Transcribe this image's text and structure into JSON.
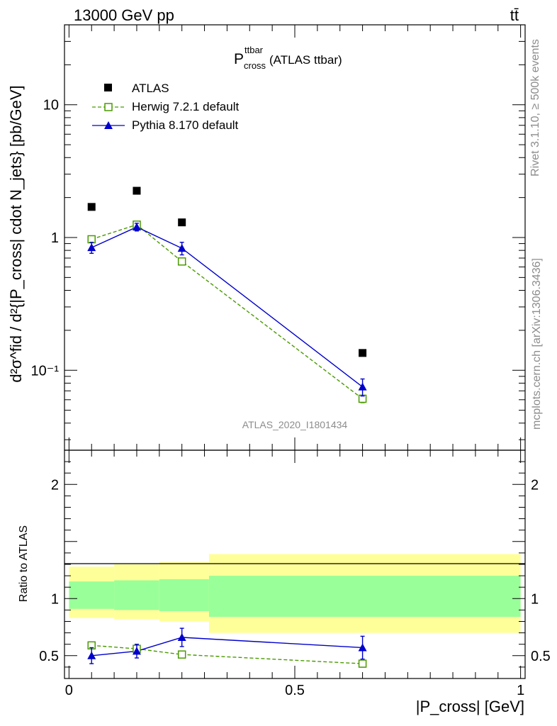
{
  "header": {
    "energy_label": "13000 GeV pp",
    "process_label": "tt̄"
  },
  "side_labels": {
    "rivet": "Rivet 3.1.10, ≥ 500k events",
    "mcplots": "mcplots.cern.ch [arXiv:1306.3436]"
  },
  "analysis_id": "ATLAS_2020_I1801434",
  "colors": {
    "data": "#000000",
    "herwig": "#4a9a00",
    "pythia": "#0000cc",
    "band_inner": "#99ff99",
    "band_outer": "#ffff99"
  },
  "chart_data": [
    {
      "type": "scatter",
      "panel": "main",
      "title": {
        "main": "P",
        "sup": "ttbar",
        "sub": "cross",
        "suffix": " (ATLAS ttbar)"
      },
      "ylabel": {
        "numerator": "d",
        "denominator_text": "d",
        "full": "d²σ^fid / d²{|P_cross| cdot N_jets} [pb/GeV]"
      },
      "yscale": "log",
      "ylim": [
        0.025,
        40
      ],
      "xlim": [
        -0.01,
        1.01
      ],
      "ytick_labels": [
        "10⁻¹",
        "1",
        "10"
      ],
      "x": [
        0.05,
        0.15,
        0.25,
        0.65
      ],
      "x_bins": [
        [
          0.0,
          0.1
        ],
        [
          0.1,
          0.2
        ],
        [
          0.2,
          0.31
        ],
        [
          0.31,
          1.0
        ]
      ],
      "legend_position": "top-left",
      "series": [
        {
          "name": "ATLAS",
          "marker": "square-filled",
          "values": [
            1.7,
            2.25,
            1.3,
            0.135
          ]
        },
        {
          "name": "Herwig 7.2.1 default",
          "marker": "square-open",
          "line": "dashed",
          "values": [
            0.97,
            1.25,
            0.66,
            0.061
          ],
          "err": [
            0.04,
            0.05,
            0.03,
            0.004
          ]
        },
        {
          "name": "Pythia 8.170 default",
          "marker": "triangle",
          "line": "solid",
          "values": [
            0.84,
            1.2,
            0.83,
            0.075
          ],
          "err": [
            0.08,
            0.08,
            0.09,
            0.011
          ]
        }
      ]
    },
    {
      "type": "line",
      "panel": "ratio",
      "ylabel": "Ratio to ATLAS",
      "ylim": [
        0.3,
        2.3
      ],
      "xlabel": "|P_cross| [GeV]",
      "xtick_labels": [
        "0",
        "0.5",
        "1"
      ],
      "ytick_labels": [
        "0.5",
        "1",
        "2"
      ],
      "x": [
        0.05,
        0.15,
        0.25,
        0.65
      ],
      "bands": [
        {
          "bin": [
            0.0,
            0.1
          ],
          "inner": [
            0.91,
            1.15
          ],
          "outer": [
            0.83,
            1.28
          ]
        },
        {
          "bin": [
            0.1,
            0.2
          ],
          "inner": [
            0.9,
            1.16
          ],
          "outer": [
            0.82,
            1.3
          ]
        },
        {
          "bin": [
            0.2,
            0.31
          ],
          "inner": [
            0.89,
            1.17
          ],
          "outer": [
            0.8,
            1.32
          ]
        },
        {
          "bin": [
            0.31,
            1.0
          ],
          "inner": [
            0.84,
            1.2
          ],
          "outer": [
            0.7,
            1.39
          ]
        }
      ],
      "series": [
        {
          "name": "Herwig 7.2.1 default",
          "values": [
            0.59,
            0.56,
            0.51,
            0.43
          ],
          "err": [
            0.02,
            0.03,
            0.02,
            0.03
          ]
        },
        {
          "name": "Pythia 8.170 default",
          "values": [
            0.5,
            0.54,
            0.66,
            0.57
          ],
          "err": [
            0.07,
            0.06,
            0.08,
            0.1
          ]
        }
      ]
    }
  ]
}
